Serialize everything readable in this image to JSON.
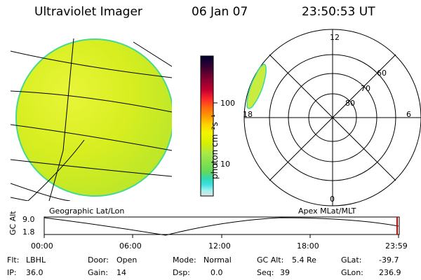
{
  "header": {
    "instrument": "Ultraviolet Imager",
    "date": "06 Jan 07",
    "time": "23:50:53 UT"
  },
  "panels": {
    "geo_label": "Geographic Lat/Lon",
    "apex_label": "Apex MLat/MLT"
  },
  "colorbar": {
    "label": "photon cm⁻²s⁻¹",
    "ticks": [
      "100",
      "10"
    ],
    "scale": "log",
    "colors": [
      "#000030",
      "#3a0030",
      "#800030",
      "#c00030",
      "#ff2a2a",
      "#ff6a10",
      "#ff9a00",
      "#ffd200",
      "#f4f400",
      "#d8f000",
      "#a6e84a",
      "#80e050",
      "#60d860",
      "#30d8b8",
      "#40e0e0",
      "#a0f0f0",
      "#e0e0e0"
    ]
  },
  "polar": {
    "lat_labels": [
      "60",
      "70",
      "80"
    ],
    "mlt_labels": [
      "12",
      "18",
      "6",
      "0"
    ]
  },
  "altitude": {
    "axis_label": "GC Alt",
    "ymax": "9.0",
    "ymin": "1.8",
    "times": [
      "00:00",
      "06:00",
      "12:00",
      "18:00",
      "23:59"
    ]
  },
  "status": {
    "flt": {
      "label": "Flt:",
      "value": "LBHL"
    },
    "ip": {
      "label": "IP:",
      "value": "36.0"
    },
    "door": {
      "label": "Door:",
      "value": "Open"
    },
    "gain": {
      "label": "Gain:",
      "value": "14"
    },
    "mode": {
      "label": "Mode:",
      "value": "Normal"
    },
    "dsp": {
      "label": "Dsp:",
      "value": "0.0"
    },
    "gcalt": {
      "label": "GC Alt:",
      "value": "5.4 Re"
    },
    "seq": {
      "label": "Seq:",
      "value": "39"
    },
    "glat": {
      "label": "GLat:",
      "value": "-39.7"
    },
    "glon": {
      "label": "GLon:",
      "value": "236.9"
    }
  }
}
